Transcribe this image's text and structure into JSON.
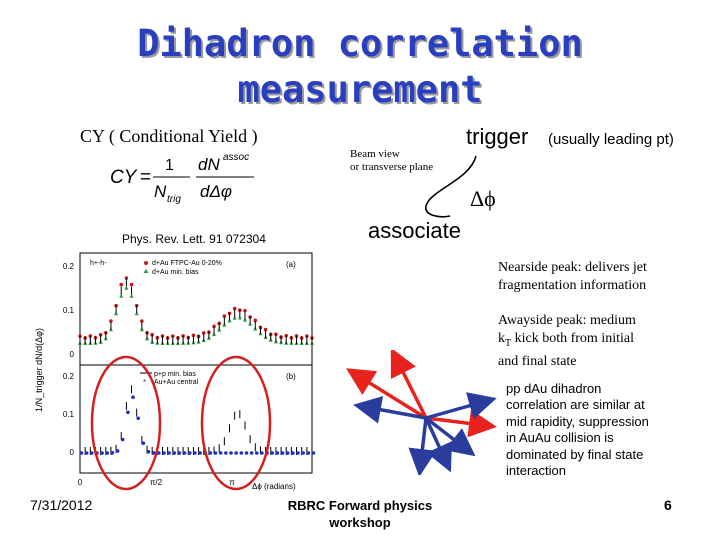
{
  "slide": {
    "title_line1": "Dihadron correlation",
    "title_line2": "measurement",
    "cy_label": "CY ( Conditional Yield )",
    "formula": {
      "lhs": "CY",
      "eq": "=",
      "one": "1",
      "n_trig": "N",
      "trig_sub": "trig",
      "dN": "dN",
      "assoc_sup": "assoc",
      "dphi": "dΔφ"
    },
    "reference": "Phys. Rev. Lett. 91 072304",
    "beam_view_line1": "Beam view",
    "beam_view_line2": "or transverse plane",
    "trigger_label": "trigger",
    "trigger_note": "(usually leading pt)",
    "dphi_label": "Δϕ",
    "associate_label": "associate",
    "nearside_text_1": "Nearside peak: delivers jet",
    "nearside_text_2": "fragmentation information",
    "awayside_text_1": "Awayside peak: medium",
    "awayside_text_2a": "k",
    "awayside_text_2sub": "T",
    "awayside_text_2b": " kick both from initial",
    "awayside_text_3": "and final state",
    "summary_lines": [
      "pp dAu dihadron",
      "correlation are similar at",
      "mid rapidity, suppression",
      "in AuAu collision is",
      "dominated by final state",
      "interaction"
    ],
    "footer_date": "7/31/2012",
    "footer_center_1": "RBRC Forward physics",
    "footer_center_2": "workshop",
    "slide_number": "6"
  },
  "plot": {
    "ylabel": "1/N_trigger dN/d(Δφ)",
    "top_panel": {
      "label": "(a)",
      "legend": [
        "h+-h-",
        "d+Au FTPC-Au 0-20%",
        "d+Au min. bias"
      ],
      "yticks": [
        "0.2",
        "0.1",
        "0"
      ]
    },
    "bottom_panel": {
      "label": "(b)",
      "legend": [
        "p+p min. bias",
        "Au+Au central"
      ],
      "yticks": [
        "0.2",
        "0.1",
        "0"
      ]
    },
    "xticks": [
      "0",
      "π/2",
      "π"
    ],
    "xlabel": "Δϕ (radians)"
  },
  "colors": {
    "title": "#2a3fbf",
    "arrow_red": "#e8231e",
    "arrow_blue": "#2b3d9c",
    "circle": "#d42020",
    "dAu_central": "#d01818",
    "dAu_minbias": "#2a9a3a",
    "auau": "#2030c0"
  }
}
